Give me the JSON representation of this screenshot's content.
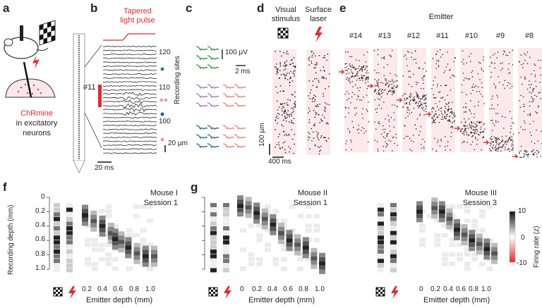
{
  "panel_labels": {
    "a": "a",
    "b": "b",
    "c": "c",
    "d": "d",
    "e": "e",
    "f": "f",
    "g": "g"
  },
  "panel_a": {
    "opsin_name": "ChRmine",
    "opsin_desc_1": "in excitatory",
    "opsin_desc_2": "neurons"
  },
  "panel_b": {
    "pulse_label_1": "Tapered",
    "pulse_label_2": "light pulse",
    "emitter_label": "#11",
    "site_ticks": [
      "120",
      "110",
      "100"
    ],
    "axis_label": "Recording sites",
    "time_scale": "20 ms",
    "depth_scale": "20 µm"
  },
  "panel_c": {
    "volt_scale": "100 µV",
    "time_scale": "2 ms"
  },
  "panel_d": {
    "col1_title_1": "Visual",
    "col1_title_2": "stimulus",
    "col2_title_1": "Surface",
    "col2_title_2": "laser",
    "depth_scale": "100 µm",
    "time_scale": "400 ms"
  },
  "panel_e": {
    "title": "Emitter",
    "emitters": [
      "#14",
      "#13",
      "#12",
      "#11",
      "#10",
      "#9",
      "#8"
    ]
  },
  "heatmaps": [
    {
      "mouse": "Mouse I",
      "session": "Session 1"
    },
    {
      "mouse": "Mouse II",
      "session": "Session 1"
    },
    {
      "mouse": "Mouse III",
      "session": "Session 3"
    }
  ],
  "axes": {
    "y_label": "Recording depth (mm)",
    "x_label": "Emitter depth (mm)",
    "y_ticks": [
      "0",
      "0.2",
      "0.4",
      "0.6",
      "0.8",
      "1.0"
    ],
    "x_ticks_f": [
      "0.2",
      "0.4",
      "0.6",
      "0.8",
      "1.0"
    ],
    "x_ticks_g": [
      "0",
      "0.2",
      "0.4",
      "0.6",
      "0.8",
      "1.0"
    ]
  },
  "colorbar": {
    "label": "Firing rate (z)",
    "ticks": [
      "10",
      "0",
      "-10"
    ]
  },
  "colors": {
    "accent_red": "#e8272a",
    "green": "#2e8b3a",
    "purple": "#9b6fc0",
    "blue": "#1f5f8f",
    "salmon": "#e27d6a"
  },
  "chart_data": [
    {
      "type": "heatmap",
      "title": "Mouse I Session 1",
      "xlabel": "Emitter depth (mm)",
      "ylabel": "Recording depth (mm)",
      "xlim": [
        0.2,
        1.0
      ],
      "ylim": [
        0,
        1.0
      ],
      "diagonal": [
        [
          0.2,
          0.25
        ],
        [
          0.3,
          0.33
        ],
        [
          0.4,
          0.4
        ],
        [
          0.5,
          0.5
        ],
        [
          0.55,
          0.58
        ],
        [
          0.62,
          0.62
        ],
        [
          0.7,
          0.7
        ],
        [
          0.8,
          0.78
        ],
        [
          0.9,
          0.82
        ],
        [
          1.0,
          0.82
        ]
      ]
    },
    {
      "type": "heatmap",
      "title": "Mouse II Session 1",
      "xlabel": "Emitter depth (mm)",
      "ylabel": "Recording depth (mm)",
      "xlim": [
        0,
        1.0
      ],
      "ylim": [
        0,
        1.0
      ],
      "diagonal": [
        [
          0.0,
          0.12
        ],
        [
          0.1,
          0.14
        ],
        [
          0.2,
          0.22
        ],
        [
          0.3,
          0.3
        ],
        [
          0.4,
          0.38
        ],
        [
          0.5,
          0.5
        ],
        [
          0.6,
          0.6
        ],
        [
          0.7,
          0.66
        ],
        [
          0.8,
          0.7
        ],
        [
          0.9,
          0.85
        ],
        [
          1.0,
          0.92
        ]
      ]
    },
    {
      "type": "heatmap",
      "title": "Mouse III Session 3",
      "xlabel": "Emitter depth (mm)",
      "ylabel": "Recording depth (mm)",
      "xlim": [
        0,
        1.0
      ],
      "ylim": [
        0,
        1.0
      ],
      "zlim": [
        -10,
        10
      ],
      "diagonal": [
        [
          0.0,
          0.2
        ],
        [
          0.2,
          0.15
        ],
        [
          0.3,
          0.2
        ],
        [
          0.4,
          0.3
        ],
        [
          0.5,
          0.45
        ],
        [
          0.6,
          0.52
        ],
        [
          0.7,
          0.6
        ],
        [
          0.8,
          0.65
        ],
        [
          0.9,
          0.72
        ],
        [
          1.0,
          0.78
        ]
      ]
    }
  ]
}
